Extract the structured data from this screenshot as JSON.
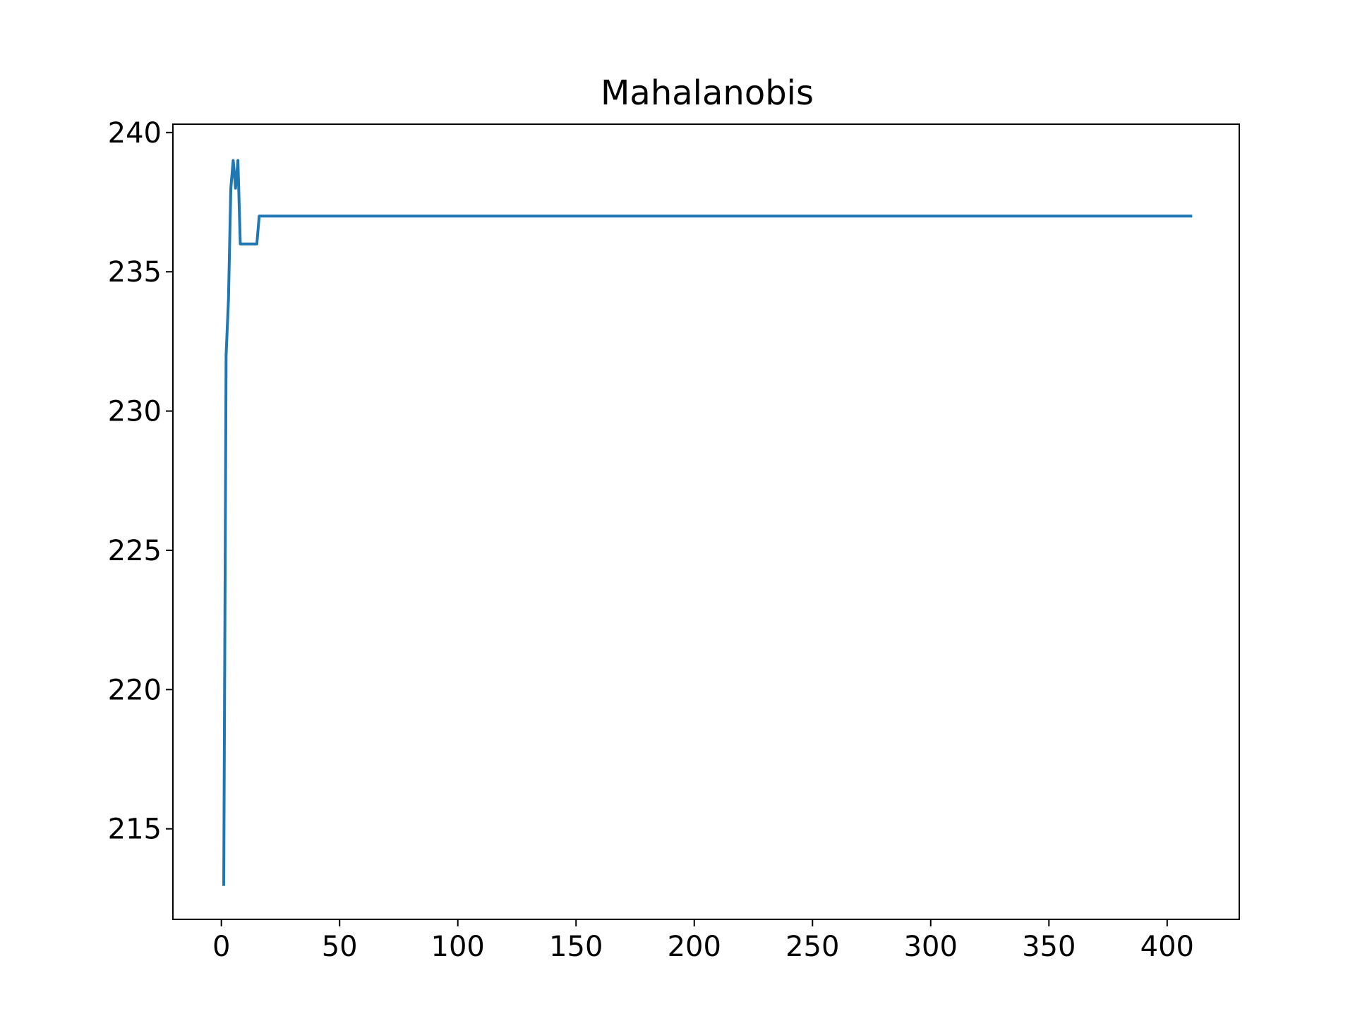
{
  "chart_data": {
    "type": "line",
    "title": "Mahalanobis",
    "xlabel": "",
    "ylabel": "",
    "xlim": [
      -20.5,
      430.5
    ],
    "ylim": [
      211.75,
      240.3
    ],
    "xticks": [
      0,
      50,
      100,
      150,
      200,
      250,
      300,
      350,
      400
    ],
    "xtick_labels": [
      "0",
      "50",
      "100",
      "150",
      "200",
      "250",
      "300",
      "350",
      "400"
    ],
    "yticks": [
      215,
      220,
      225,
      230,
      235,
      240
    ],
    "ytick_labels": [
      "215",
      "220",
      "225",
      "230",
      "235",
      "240"
    ],
    "grid": false,
    "legend": "none",
    "series": [
      {
        "color": "#1f77b4",
        "x": [
          1,
          2,
          3,
          4,
          5,
          6,
          7,
          8,
          9,
          10,
          11,
          12,
          13,
          14,
          15,
          16,
          410
        ],
        "y": [
          213,
          232,
          234,
          238,
          239,
          238,
          239,
          236,
          236,
          236,
          236,
          236,
          236,
          236,
          236,
          237,
          237
        ]
      }
    ]
  }
}
